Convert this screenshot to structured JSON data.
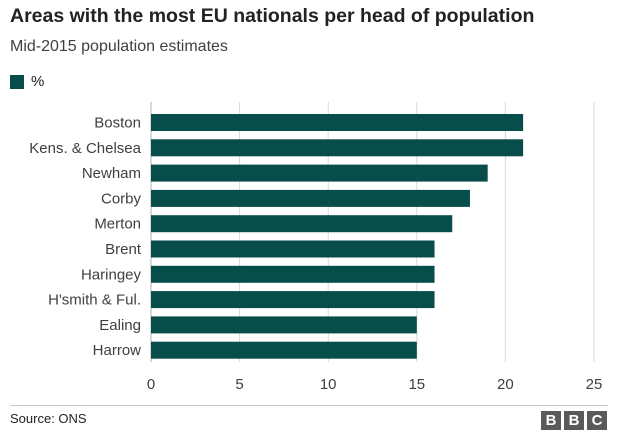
{
  "header": {
    "title": "Areas with the most EU nationals per head of population",
    "subtitle": "Mid-2015 population estimates"
  },
  "legend": {
    "label": "%",
    "color": "#074d4a"
  },
  "chart_data": {
    "type": "bar",
    "orientation": "horizontal",
    "title": "Areas with the most EU nationals per head of population",
    "subtitle": "Mid-2015 population estimates",
    "categories": [
      "Boston",
      "Kens. & Chelsea",
      "Newham",
      "Corby",
      "Merton",
      "Brent",
      "Haringey",
      "H'smith & Ful.",
      "Ealing",
      "Harrow"
    ],
    "series": [
      {
        "name": "%",
        "values": [
          21,
          21,
          19,
          18,
          17,
          16,
          16,
          16,
          15,
          15
        ]
      }
    ],
    "xlim": [
      0,
      25
    ],
    "xticks": [
      0,
      5,
      10,
      15,
      20,
      25
    ],
    "xlabel": "",
    "ylabel": "",
    "grid": true,
    "legend_position": "top-left",
    "bar_color": "#074d4a",
    "grid_color": "#d9d9d9"
  },
  "footer": {
    "source": "Source: ONS",
    "logo_letters": [
      "B",
      "B",
      "C"
    ]
  }
}
